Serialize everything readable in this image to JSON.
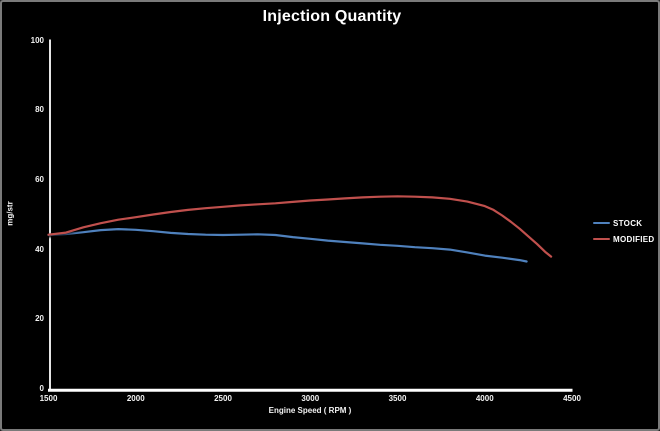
{
  "window": {
    "background_color": "#000000",
    "border_color": "#7a7a7a",
    "text_color": "#ffffff",
    "axis_color": "#ffffff"
  },
  "chart_data": {
    "type": "line",
    "title": "Injection Quantity",
    "xlabel": "Engine Speed ( RPM )",
    "ylabel": "mg/str",
    "xlim": [
      1500,
      4500
    ],
    "ylim": [
      0,
      100
    ],
    "x_ticks": [
      1500,
      2000,
      2500,
      3000,
      3500,
      4000,
      4500
    ],
    "y_ticks": [
      0,
      20,
      40,
      60,
      80,
      100
    ],
    "grid": false,
    "legend_position": "right",
    "series": [
      {
        "name": "STOCK",
        "color": "#4F81BD",
        "points": [
          [
            1500,
            44.2
          ],
          [
            1600,
            44.5
          ],
          [
            1700,
            45.0
          ],
          [
            1800,
            45.6
          ],
          [
            1900,
            45.9
          ],
          [
            2000,
            45.7
          ],
          [
            2100,
            45.3
          ],
          [
            2200,
            44.8
          ],
          [
            2300,
            44.5
          ],
          [
            2400,
            44.3
          ],
          [
            2500,
            44.2
          ],
          [
            2600,
            44.3
          ],
          [
            2700,
            44.4
          ],
          [
            2800,
            44.2
          ],
          [
            2900,
            43.6
          ],
          [
            3000,
            43.1
          ],
          [
            3100,
            42.6
          ],
          [
            3200,
            42.2
          ],
          [
            3300,
            41.8
          ],
          [
            3400,
            41.4
          ],
          [
            3500,
            41.1
          ],
          [
            3600,
            40.7
          ],
          [
            3700,
            40.4
          ],
          [
            3800,
            40.0
          ],
          [
            3900,
            39.2
          ],
          [
            4000,
            38.3
          ],
          [
            4100,
            37.7
          ],
          [
            4200,
            37.0
          ],
          [
            4240,
            36.6
          ]
        ]
      },
      {
        "name": "MODIFIED",
        "color": "#C0504D",
        "points": [
          [
            1500,
            44.3
          ],
          [
            1600,
            44.9
          ],
          [
            1700,
            46.4
          ],
          [
            1800,
            47.6
          ],
          [
            1900,
            48.6
          ],
          [
            2000,
            49.3
          ],
          [
            2100,
            50.1
          ],
          [
            2200,
            50.8
          ],
          [
            2300,
            51.4
          ],
          [
            2400,
            51.9
          ],
          [
            2500,
            52.3
          ],
          [
            2600,
            52.7
          ],
          [
            2700,
            53.0
          ],
          [
            2800,
            53.3
          ],
          [
            2900,
            53.7
          ],
          [
            3000,
            54.1
          ],
          [
            3100,
            54.4
          ],
          [
            3200,
            54.7
          ],
          [
            3300,
            55.0
          ],
          [
            3400,
            55.2
          ],
          [
            3500,
            55.3
          ],
          [
            3600,
            55.2
          ],
          [
            3700,
            55.0
          ],
          [
            3800,
            54.6
          ],
          [
            3900,
            53.8
          ],
          [
            4000,
            52.5
          ],
          [
            4050,
            51.4
          ],
          [
            4100,
            49.8
          ],
          [
            4150,
            48.0
          ],
          [
            4200,
            46.0
          ],
          [
            4250,
            43.8
          ],
          [
            4300,
            41.6
          ],
          [
            4350,
            39.2
          ],
          [
            4380,
            38.0
          ]
        ]
      }
    ]
  }
}
